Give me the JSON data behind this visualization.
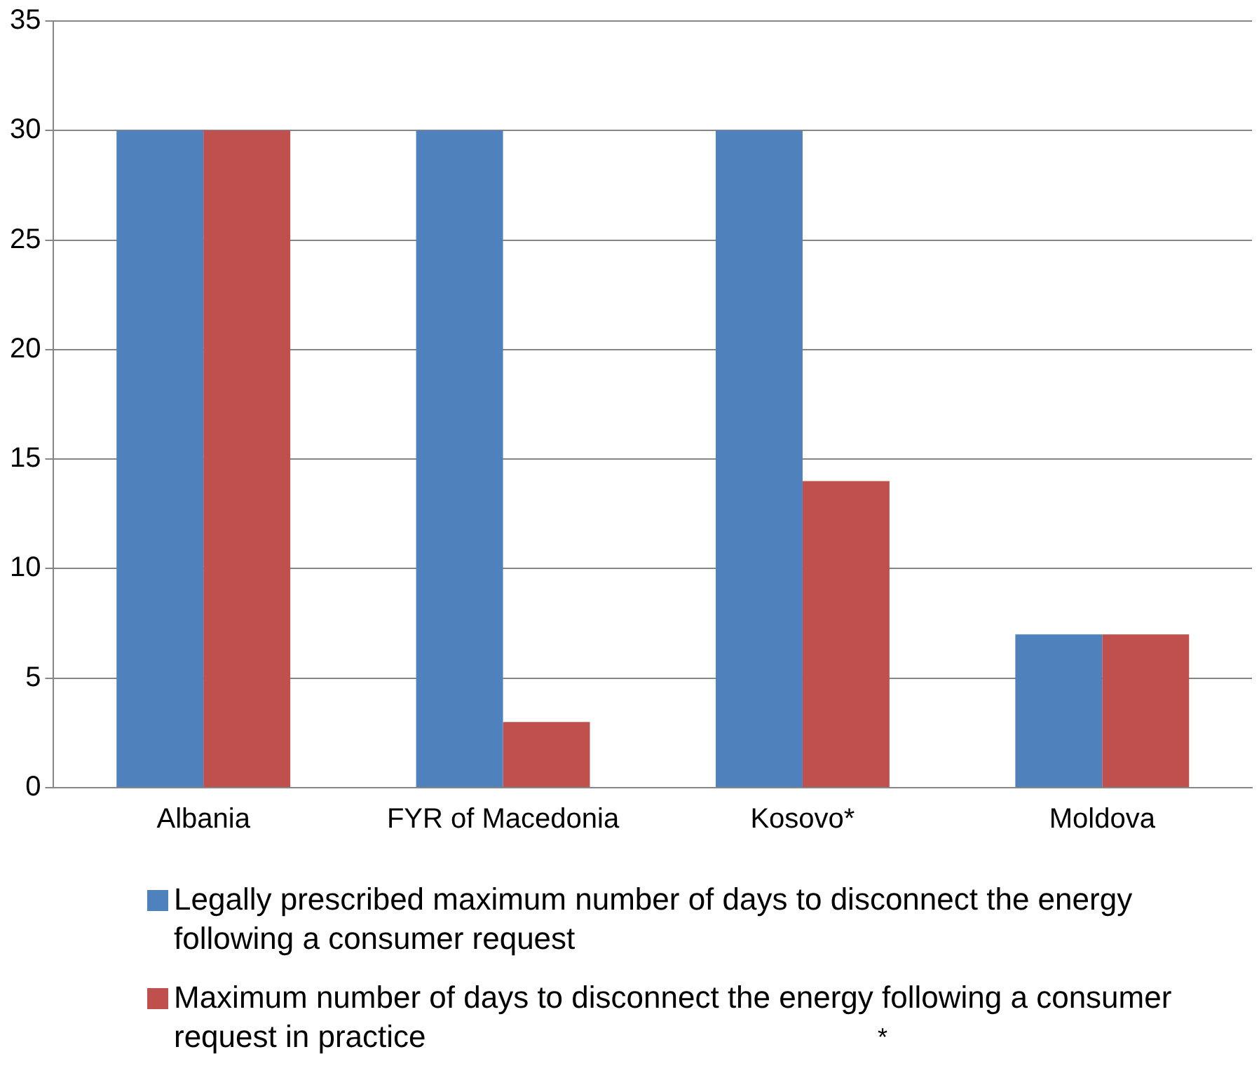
{
  "chart_data": {
    "type": "bar",
    "categories": [
      "Albania",
      "FYR of Macedonia",
      "Kosovo*",
      "Moldova"
    ],
    "series": [
      {
        "name": "Legally prescribed maximum number of days to disconnect the energy following a consumer request",
        "color": "#4f81bd",
        "values": [
          30,
          30,
          30,
          7
        ]
      },
      {
        "name": "Maximum number of days to disconnect the energy following a consumer request in practice",
        "color": "#c0504d",
        "values": [
          30,
          3,
          14,
          7
        ]
      }
    ],
    "ylim": [
      0,
      35
    ],
    "yticks": [
      0,
      5,
      10,
      15,
      20,
      25,
      30,
      35
    ],
    "grid": "y",
    "legend": "bottom",
    "annotations": [
      "*"
    ]
  }
}
